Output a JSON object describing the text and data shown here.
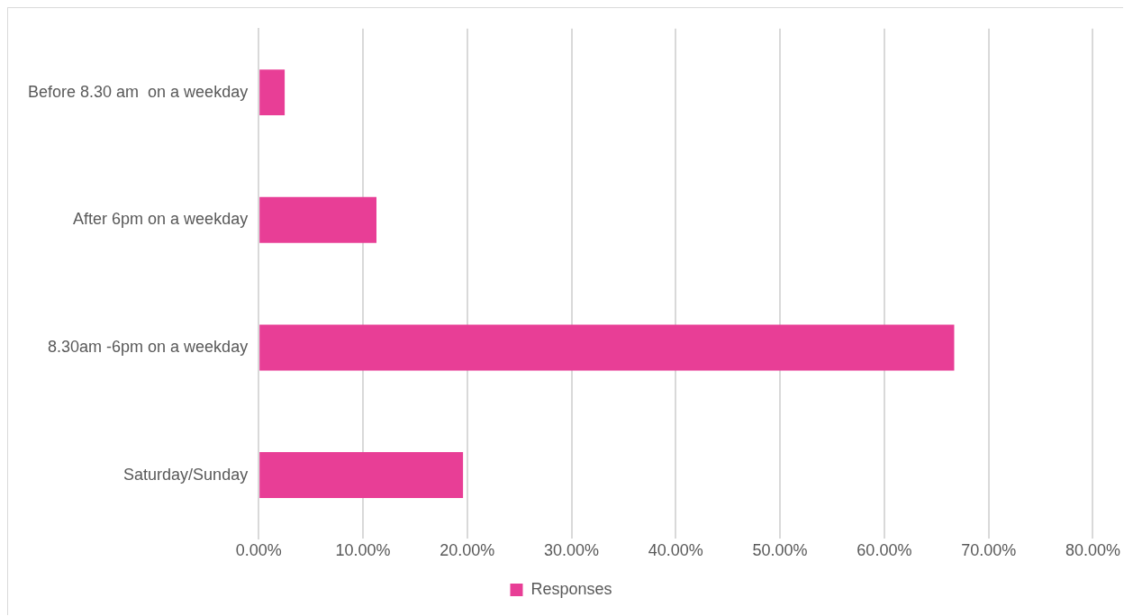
{
  "chart_data": {
    "type": "bar",
    "orientation": "horizontal",
    "categories": [
      "Before 8.30 am  on a weekday",
      "After 6pm on a weekday",
      "8.30am -6pm on a weekday",
      "Saturday/Sunday"
    ],
    "series": [
      {
        "name": "Responses",
        "color": "#e83e96",
        "values": [
          2.5,
          11.3,
          66.7,
          19.6
        ]
      }
    ],
    "xlim": [
      0,
      80
    ],
    "xticks": [
      {
        "value": 0,
        "label": "0.00%"
      },
      {
        "value": 10,
        "label": "10.00%"
      },
      {
        "value": 20,
        "label": "20.00%"
      },
      {
        "value": 30,
        "label": "30.00%"
      },
      {
        "value": 40,
        "label": "40.00%"
      },
      {
        "value": 50,
        "label": "50.00%"
      },
      {
        "value": 60,
        "label": "60.00%"
      },
      {
        "value": 70,
        "label": "70.00%"
      },
      {
        "value": 80,
        "label": "80.00%"
      }
    ],
    "grid": "x",
    "legend": "bottom"
  }
}
